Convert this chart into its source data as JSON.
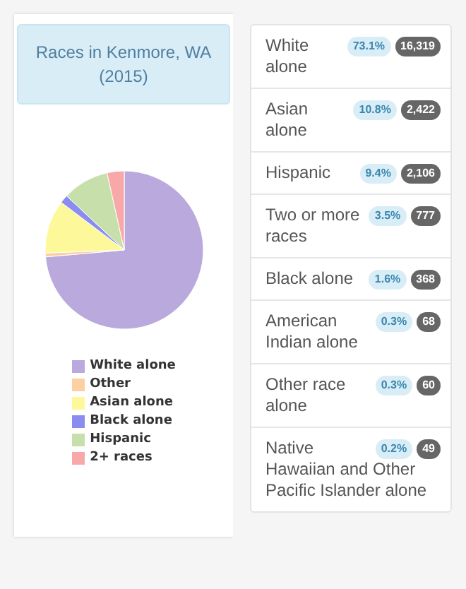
{
  "chart_data": [
    {
      "type": "pie",
      "title": "Races in Kenmore, WA (2015)",
      "categories": [
        "White alone",
        "Other",
        "Asian alone",
        "Black alone",
        "Hispanic",
        "2+ races"
      ],
      "values": [
        73.6,
        0.8,
        10.9,
        1.7,
        9.5,
        3.5
      ],
      "colors": [
        "#b9a9dc",
        "#fdd0a2",
        "#fdf99b",
        "#8b8cf0",
        "#c6dfab",
        "#f8a8a8"
      ],
      "legend": "bottom"
    },
    {
      "type": "other",
      "categories": [
        "White alone",
        "Asian alone",
        "Hispanic",
        "Two or more races",
        "Black alone",
        "American Indian alone",
        "Other race alone",
        "Native Hawaiian and Other Pacific Islander alone"
      ],
      "series": [
        {
          "color": "#d9edf7",
          "values": [
            73.1,
            10.8,
            9.4,
            3.5,
            1.6,
            0.3,
            0.3,
            0.2
          ],
          "value_labels": [
            "73.1%",
            "10.8%",
            "9.4%",
            "3.5%",
            "1.6%",
            "0.3%",
            "0.3%",
            "0.2%"
          ]
        },
        {
          "color": "#666666",
          "values": [
            16319,
            2422,
            2106,
            777,
            368,
            68,
            60,
            49
          ],
          "value_labels": [
            "16,319",
            "2,422",
            "2,106",
            "777",
            "368",
            "68",
            "60",
            "49"
          ]
        }
      ]
    }
  ]
}
